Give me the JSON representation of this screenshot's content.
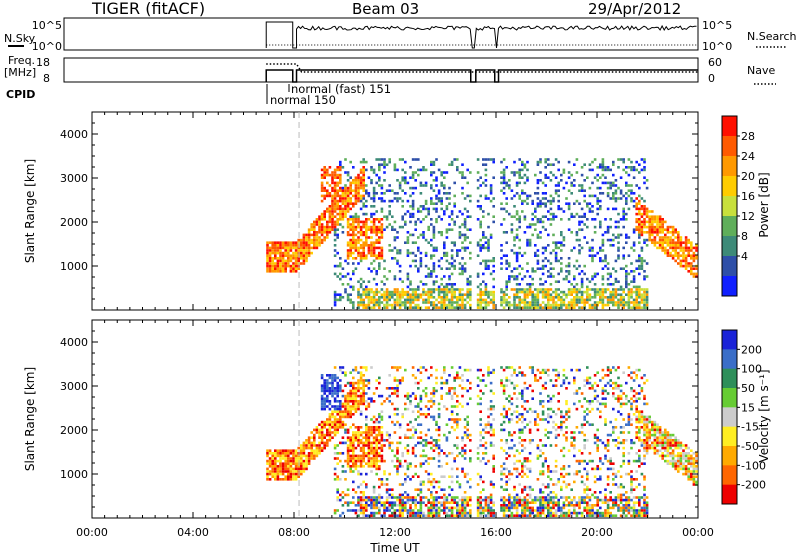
{
  "header": {
    "title": "TIGER (fitACF)",
    "beam": "Beam 03",
    "date": "29/Apr/2012"
  },
  "strips": {
    "nsky_label": "N.Sky",
    "nsky_ticks": [
      "10^5",
      "10^0"
    ],
    "nsearch_label": "N.Search",
    "nsearch_ticks": [
      "10^5",
      "10^0"
    ],
    "freq_label_1": "Freq.",
    "freq_label_2": "[MHz]",
    "freq_ticks": [
      "18",
      "8"
    ],
    "nave_label": "Nave",
    "nave_ticks": [
      "60",
      "0"
    ],
    "cpid_label": "CPID",
    "cpid_modes": [
      "normal 150",
      "normal (fast) 151"
    ]
  },
  "chart_data": [
    {
      "type": "heatmap",
      "name": "power",
      "ylabel": "Slant Range [km]",
      "ylim": [
        0,
        4500
      ],
      "yticks": [
        "1000",
        "2000",
        "3000",
        "4000"
      ],
      "colorbar_label": "Power [dB]",
      "colorbar_ticks": [
        "4",
        "8",
        "12",
        "16",
        "20",
        "24",
        "28"
      ],
      "colors": [
        "#1020ff",
        "#2e4fa8",
        "#3d8a78",
        "#5fae5a",
        "#c8e03c",
        "#ffcc00",
        "#ff9900",
        "#ff5a00",
        "#ff1000"
      ]
    },
    {
      "type": "heatmap",
      "name": "velocity",
      "ylabel": "Slant Range [km]",
      "ylim": [
        0,
        4500
      ],
      "yticks": [
        "1000",
        "2000",
        "3000",
        "4000"
      ],
      "colorbar_label": "Velocity [m s⁻¹]",
      "colorbar_ticks": [
        "200",
        "100",
        "50",
        "15",
        "-15",
        "-50",
        "-100",
        "-200"
      ],
      "colors": [
        "#1a23d8",
        "#3a6ec8",
        "#2e8f5a",
        "#66cc33",
        "#cccccc",
        "#ffee22",
        "#ffaa00",
        "#ff6600",
        "#ee0000"
      ]
    }
  ],
  "xaxis": {
    "label": "Time UT",
    "ticks": [
      "00:00",
      "04:00",
      "08:00",
      "12:00",
      "16:00",
      "20:00",
      "00:00"
    ]
  }
}
